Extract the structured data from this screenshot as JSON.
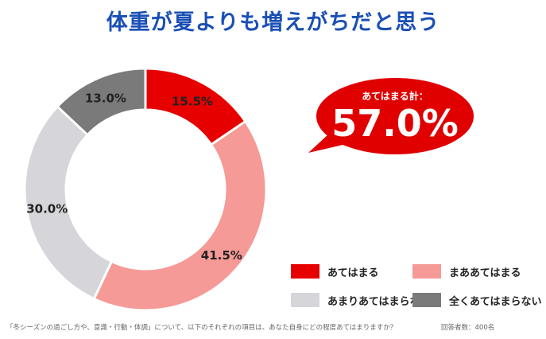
{
  "title": "体重が夏よりも増えがちだと思う",
  "callout": {
    "label": "あてはまる計：",
    "value": "57.0%",
    "color": "#e00000"
  },
  "footnote": "「冬シーズンの過ごし方や、意識・行動・体調」について、以下のそれぞれの項目は、あなた自身にどの程度あてはまりますか？",
  "sample_note": "回答者数：400名",
  "chart_data": {
    "type": "pie",
    "donut": true,
    "title": "体重が夏よりも増えがちだと思う",
    "slices": [
      {
        "name": "あてはまる",
        "value": 15.5,
        "label": "15.5%",
        "color": "#e60000"
      },
      {
        "name": "まああてはまる",
        "value": 41.5,
        "label": "41.5%",
        "color": "#f59a96"
      },
      {
        "name": "あまりあてはまらない",
        "value": 30.0,
        "label": "30.0%",
        "color": "#d6d6da"
      },
      {
        "name": "全くあてはまらない",
        "value": 13.0,
        "label": "13.0%",
        "color": "#7a7a7a"
      }
    ],
    "legend_position": "bottom-right"
  }
}
